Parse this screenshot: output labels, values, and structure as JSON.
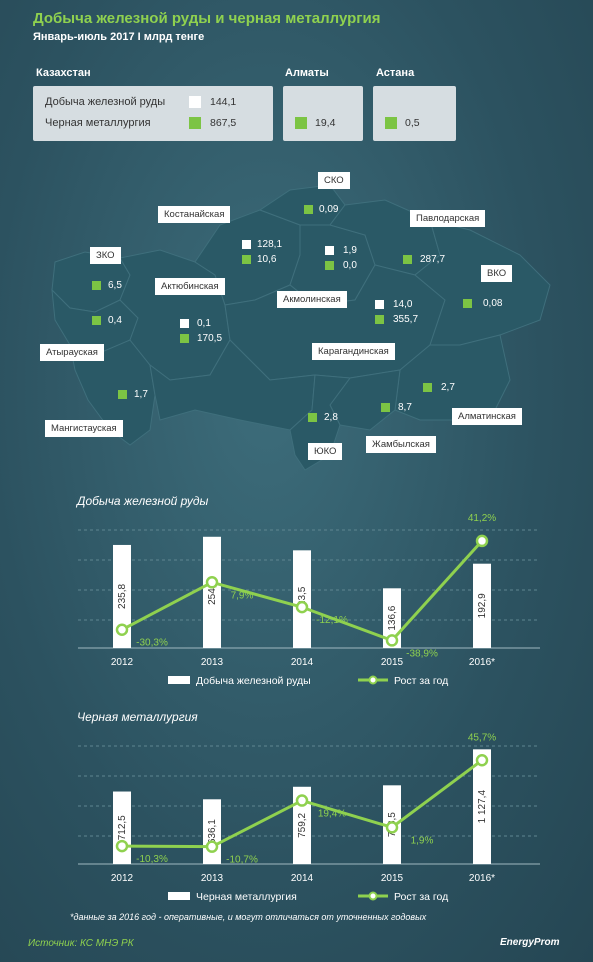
{
  "title": "Добыча железной руды и черная металлургия",
  "subtitle": "Январь-июль  2017 I млрд тенге",
  "colors": {
    "accent": "#8fd14f",
    "iron": "#ffffff",
    "metal": "#7cc444"
  },
  "summary": {
    "kz_title": "Казахстан",
    "iron_label": "Добыча железной руды",
    "iron_value": "144,1",
    "metal_label": "Черная металлургия",
    "metal_value": "867,5",
    "almaty_title": "Алматы",
    "almaty_value": "19,4",
    "astana_title": "Астана",
    "astana_value": "0,5"
  },
  "regions": {
    "sko": {
      "name": "СКО",
      "metal": "0,09"
    },
    "kostanay": {
      "name": "Костанайская",
      "iron": "128,1",
      "metal": "10,6"
    },
    "pavlodar": {
      "name": "Павлодарская",
      "metal": "287,7"
    },
    "zko": {
      "name": "ЗКО",
      "metal": "6,5"
    },
    "aktobe": {
      "name": "Актюбинская",
      "iron": "0,1",
      "metal": "170,5"
    },
    "akmola": {
      "name": "Акмолинская",
      "iron": "1,9",
      "metal": "0,0"
    },
    "vko": {
      "name": "ВКО",
      "metal": "0,08"
    },
    "atyrau": {
      "name": "Атырауская",
      "metal": "0,4"
    },
    "karaganda": {
      "name": "Карагандинская",
      "iron": "14,0",
      "metal": "355,7"
    },
    "mangystau": {
      "name": "Мангистауская",
      "metal": "1,7"
    },
    "almaty_reg": {
      "name": "Алматинская",
      "metal": "2,7"
    },
    "zhambyl": {
      "name": "Жамбылская",
      "metal": "8,7"
    },
    "yuko": {
      "name": "ЮКО",
      "metal": "2,8"
    }
  },
  "chart_data": [
    {
      "type": "bar",
      "title": "Добыча железной руды",
      "categories": [
        "2012",
        "2013",
        "2014",
        "2015",
        "2016*"
      ],
      "series": [
        {
          "name": "Добыча железной руды",
          "values": [
            235.8,
            254.5,
            223.5,
            136.6,
            192.9
          ],
          "labels": [
            "235,8",
            "254,5",
            "223,5",
            "136,6",
            "192,9"
          ]
        },
        {
          "name": "Рост за год",
          "type": "line",
          "values": [
            -30.3,
            7.9,
            -12.1,
            -38.9,
            41.2
          ],
          "labels": [
            "-30,3%",
            "7,9%",
            "-12,1%",
            "-38,9%",
            "41,2%"
          ]
        }
      ],
      "bar_ylim": [
        0,
        270
      ],
      "line_ylim": [
        -45,
        50
      ]
    },
    {
      "type": "bar",
      "title": "Черная металлургия",
      "categories": [
        "2012",
        "2013",
        "2014",
        "2015",
        "2016*"
      ],
      "series": [
        {
          "name": "Черная металлургия",
          "values": [
            712.5,
            636.1,
            759.2,
            773.5,
            1127.4
          ],
          "labels": [
            "712,5",
            "636,1",
            "759,2",
            "773,5",
            "1 127,4"
          ]
        },
        {
          "name": "Рост за год",
          "type": "line",
          "values": [
            -10.3,
            -10.7,
            19.4,
            1.9,
            45.7
          ],
          "labels": [
            "-10,3%",
            "-10,7%",
            "19,4%",
            "1,9%",
            "45,7%"
          ]
        }
      ],
      "bar_ylim": [
        0,
        1160
      ],
      "line_ylim": [
        -22,
        55
      ]
    }
  ],
  "footnote": "*данные за 2016 год - оперативные, и могут отличаться от уточненных годовых",
  "source": "Источник: КС МНЭ РК",
  "brand": "EnergyProm"
}
